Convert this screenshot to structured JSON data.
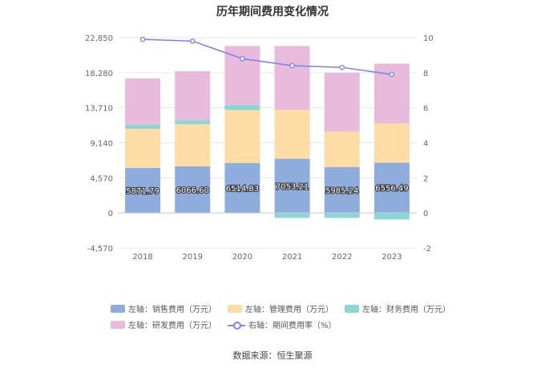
{
  "chart_data": {
    "type": "bar",
    "title": "历年期间费用变化情况",
    "categories": [
      "2018",
      "2019",
      "2020",
      "2021",
      "2022",
      "2023"
    ],
    "y_left": {
      "ticks": [
        "-4,570",
        "0",
        "4,570",
        "9,140",
        "13,710",
        "18,280",
        "22,850"
      ],
      "min": -4570,
      "max": 22850
    },
    "y_right": {
      "ticks": [
        "-2",
        "0",
        "2",
        "4",
        "6",
        "8",
        "10"
      ],
      "min": -2,
      "max": 10
    },
    "series": [
      {
        "name": "左轴：销售费用（万元）",
        "type": "bar",
        "axis": "left",
        "color": "#8eacdc",
        "values": [
          5871.79,
          6066.6,
          6514.83,
          7053.21,
          5985.24,
          6556.49
        ],
        "labels": [
          "5871.79",
          "6066.60",
          "6514.83",
          "7053.21",
          "5985.24",
          "6556.49"
        ]
      },
      {
        "name": "左轴：管理费用（万元）",
        "type": "bar",
        "axis": "left",
        "color": "#fddca5",
        "values": [
          5100,
          5500,
          6900,
          6400,
          4600,
          5100
        ]
      },
      {
        "name": "左轴：财务费用（万元）",
        "type": "bar",
        "axis": "left",
        "color": "#8ad6d6",
        "values": [
          550,
          500,
          650,
          -650,
          -650,
          -850
        ]
      },
      {
        "name": "左轴：研发费用（万元）",
        "type": "bar",
        "axis": "left",
        "color": "#e8bbdc",
        "values": [
          6000,
          6400,
          7700,
          8300,
          7700,
          7800
        ]
      },
      {
        "name": "右轴：期间费用率（%）",
        "type": "line",
        "axis": "right",
        "color": "#7b85f0",
        "values": [
          9.9,
          9.8,
          8.8,
          8.4,
          8.3,
          7.9
        ]
      }
    ]
  },
  "source": "数据来源：恒生聚源"
}
